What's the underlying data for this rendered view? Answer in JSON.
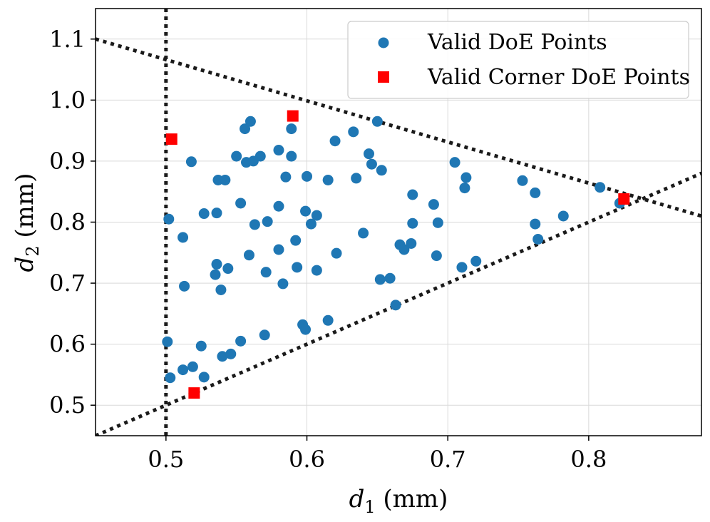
{
  "chart_data": {
    "type": "scatter",
    "xlabel": "d1 (mm)",
    "xlabel_main": "d",
    "xlabel_sub": "1",
    "xlabel_unit": " (mm)",
    "ylabel": "d2 (mm)",
    "ylabel_main": "d",
    "ylabel_sub": "2",
    "ylabel_unit": " (mm)",
    "xlim": [
      0.45,
      0.88
    ],
    "ylim": [
      0.45,
      1.15
    ],
    "xticks": [
      0.5,
      0.6,
      0.7,
      0.8
    ],
    "xtick_labels": [
      "0.5",
      "0.6",
      "0.7",
      "0.8"
    ],
    "yticks": [
      0.5,
      0.6,
      0.7,
      0.8,
      0.9,
      1.0,
      1.1
    ],
    "ytick_labels": [
      "0.5",
      "0.6",
      "0.7",
      "0.8",
      "0.9",
      "1.0",
      "1.1"
    ],
    "grid": true,
    "legend_position": "upper-right",
    "colors": {
      "doe": "#1f77b4",
      "corner": "#ff0000",
      "constraint": "#1a1a1a",
      "grid": "#d9d9d9"
    },
    "constraint_lines": [
      {
        "name": "vertical",
        "x1": 0.5,
        "y1": 0.45,
        "x2": 0.5,
        "y2": 1.15
      },
      {
        "name": "upper",
        "x1": 0.45,
        "y1": 1.1,
        "x2": 0.88,
        "y2": 0.81
      },
      {
        "name": "lower",
        "x1": 0.45,
        "y1": 0.45,
        "x2": 0.88,
        "y2": 0.88
      }
    ],
    "series": [
      {
        "name": "Valid DoE Points",
        "marker": "circle",
        "points": [
          [
            0.501,
            0.604
          ],
          [
            0.502,
            0.805
          ],
          [
            0.503,
            0.545
          ],
          [
            0.512,
            0.775
          ],
          [
            0.512,
            0.558
          ],
          [
            0.513,
            0.695
          ],
          [
            0.518,
            0.899
          ],
          [
            0.519,
            0.563
          ],
          [
            0.525,
            0.597
          ],
          [
            0.527,
            0.814
          ],
          [
            0.527,
            0.546
          ],
          [
            0.535,
            0.714
          ],
          [
            0.536,
            0.731
          ],
          [
            0.536,
            0.815
          ],
          [
            0.537,
            0.869
          ],
          [
            0.539,
            0.689
          ],
          [
            0.54,
            0.58
          ],
          [
            0.542,
            0.869
          ],
          [
            0.544,
            0.724
          ],
          [
            0.546,
            0.584
          ],
          [
            0.55,
            0.908
          ],
          [
            0.553,
            0.605
          ],
          [
            0.553,
            0.831
          ],
          [
            0.556,
            0.953
          ],
          [
            0.557,
            0.898
          ],
          [
            0.559,
            0.746
          ],
          [
            0.56,
            0.965
          ],
          [
            0.562,
            0.9
          ],
          [
            0.563,
            0.796
          ],
          [
            0.567,
            0.908
          ],
          [
            0.57,
            0.615
          ],
          [
            0.571,
            0.718
          ],
          [
            0.572,
            0.801
          ],
          [
            0.58,
            0.755
          ],
          [
            0.58,
            0.826
          ],
          [
            0.58,
            0.918
          ],
          [
            0.583,
            0.699
          ],
          [
            0.585,
            0.874
          ],
          [
            0.589,
            0.953
          ],
          [
            0.589,
            0.908
          ],
          [
            0.592,
            0.77
          ],
          [
            0.593,
            0.726
          ],
          [
            0.597,
            0.632
          ],
          [
            0.599,
            0.624
          ],
          [
            0.599,
            0.818
          ],
          [
            0.6,
            0.875
          ],
          [
            0.603,
            0.797
          ],
          [
            0.607,
            0.811
          ],
          [
            0.607,
            0.721
          ],
          [
            0.615,
            0.869
          ],
          [
            0.615,
            0.639
          ],
          [
            0.62,
            0.933
          ],
          [
            0.621,
            0.749
          ],
          [
            0.633,
            0.948
          ],
          [
            0.635,
            0.872
          ],
          [
            0.64,
            0.782
          ],
          [
            0.644,
            0.912
          ],
          [
            0.646,
            0.895
          ],
          [
            0.65,
            0.965
          ],
          [
            0.652,
            0.706
          ],
          [
            0.653,
            0.885
          ],
          [
            0.659,
            0.708
          ],
          [
            0.663,
            0.664
          ],
          [
            0.666,
            0.763
          ],
          [
            0.669,
            0.755
          ],
          [
            0.674,
            0.765
          ],
          [
            0.675,
            0.845
          ],
          [
            0.675,
            0.798
          ],
          [
            0.69,
            0.829
          ],
          [
            0.692,
            0.745
          ],
          [
            0.693,
            0.799
          ],
          [
            0.705,
            0.898
          ],
          [
            0.71,
            0.726
          ],
          [
            0.712,
            0.856
          ],
          [
            0.713,
            0.873
          ],
          [
            0.72,
            0.736
          ],
          [
            0.753,
            0.868
          ],
          [
            0.762,
            0.848
          ],
          [
            0.762,
            0.797
          ],
          [
            0.764,
            0.772
          ],
          [
            0.782,
            0.81
          ],
          [
            0.808,
            0.857
          ],
          [
            0.822,
            0.831
          ]
        ]
      },
      {
        "name": "Valid Corner DoE Points",
        "marker": "square",
        "points": [
          [
            0.504,
            0.936
          ],
          [
            0.59,
            0.974
          ],
          [
            0.52,
            0.52
          ],
          [
            0.825,
            0.838
          ]
        ]
      }
    ]
  }
}
